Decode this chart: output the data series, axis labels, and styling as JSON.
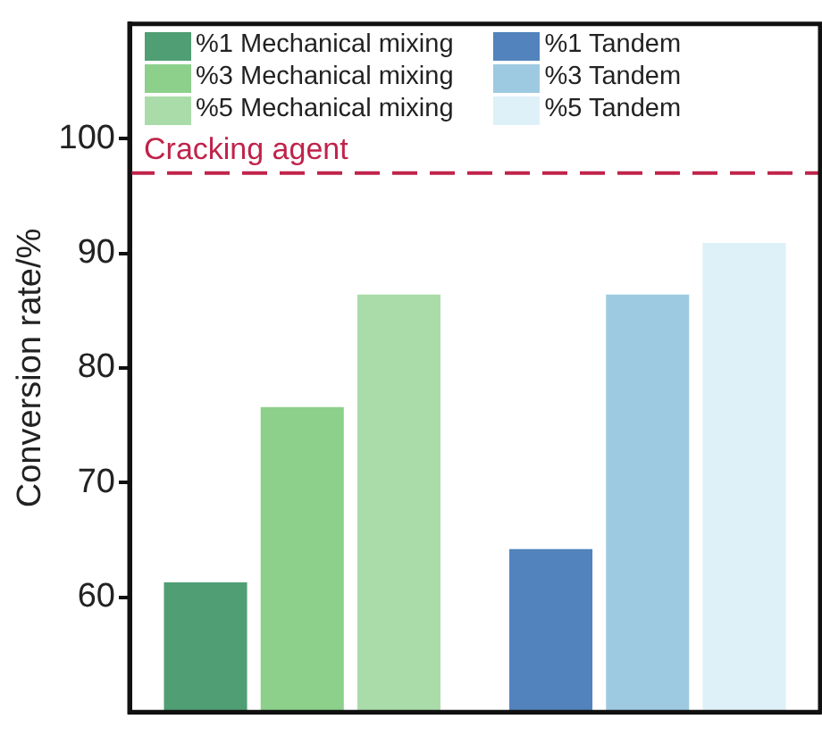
{
  "chart_data": {
    "type": "bar",
    "ylabel": "Conversion rate/%",
    "categories": [
      null,
      null
    ],
    "series": [
      {
        "name": "%1 Mechanical mixing",
        "color": "#4f9e74",
        "values": [
          61.3,
          null
        ]
      },
      {
        "name": "%3 Mechanical mixing",
        "color": "#8dd08b",
        "values": [
          76.6,
          null
        ]
      },
      {
        "name": "%5 Mechanical mixing",
        "color": "#aadcaa",
        "values": [
          86.4,
          null
        ]
      },
      {
        "name": "%1 Tandem",
        "color": "#5283bd",
        "values": [
          null,
          64.2
        ]
      },
      {
        "name": "%3 Tandem",
        "color": "#9ecae1",
        "values": [
          null,
          86.4
        ]
      },
      {
        "name": "%5 Tandem",
        "color": "#def0f8",
        "values": [
          null,
          90.9
        ]
      }
    ],
    "ylim": [
      50,
      110
    ],
    "yticks": [
      60,
      70,
      80,
      90,
      100
    ],
    "ref_lines": [
      {
        "axis": "y",
        "value": 97,
        "label": "Cracking agent",
        "color": "#c0234a",
        "line_style": "dashed"
      }
    ],
    "legend": "top left",
    "tick_labels": "y"
  }
}
